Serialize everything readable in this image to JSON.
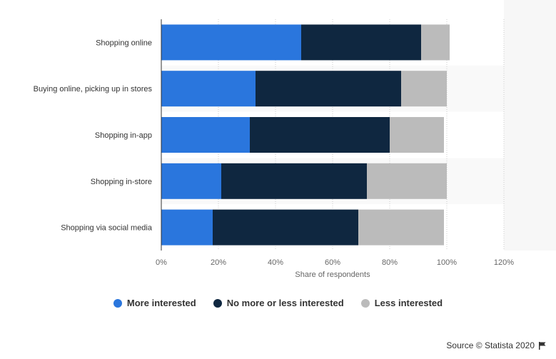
{
  "chart_data": {
    "type": "bar",
    "orientation": "horizontal",
    "stacked": true,
    "categories": [
      "Shopping online",
      "Buying online, picking up in stores",
      "Shopping in-app",
      "Shopping in-store",
      "Shopping via social media"
    ],
    "series": [
      {
        "name": "More interested",
        "color": "#2a76dd",
        "values": [
          49,
          33,
          31,
          21,
          18
        ]
      },
      {
        "name": "No more or less interested",
        "color": "#0f2740",
        "values": [
          42,
          51,
          49,
          51,
          51
        ]
      },
      {
        "name": "Less interested",
        "color": "#bbbbbb",
        "values": [
          10,
          16,
          19,
          28,
          30
        ]
      }
    ],
    "xlabel": "Share of respondents",
    "xlim": [
      0,
      120
    ],
    "xticks": [
      "0%",
      "20%",
      "40%",
      "60%",
      "80%",
      "100%",
      "120%"
    ],
    "grid": true,
    "legend_position": "bottom"
  },
  "source": {
    "text": "Source © Statista 2020",
    "icon": "flag-icon"
  }
}
